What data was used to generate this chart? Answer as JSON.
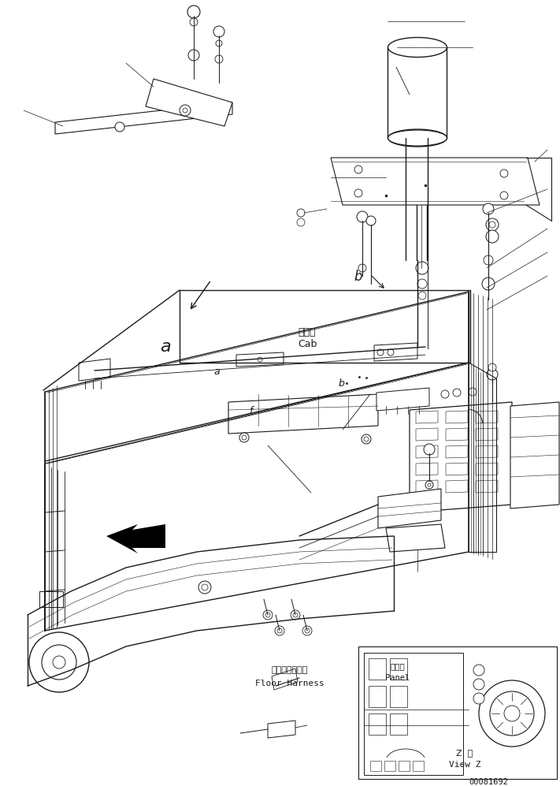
{
  "bg_color": "#ffffff",
  "line_color": "#1a1a1a",
  "fig_width": 7.11,
  "fig_height": 9.97,
  "dpi": 100,
  "texts": {
    "cab_jp": "キャブ",
    "cab_en": "Cab",
    "floor_jp": "フロアハーネス",
    "floor_en": "Floor Harness",
    "panel_jp": "パネル",
    "panel_en": "Panel",
    "viewz_jp": "Z  視",
    "viewz_en": "View Z",
    "part_num": "00081692"
  }
}
